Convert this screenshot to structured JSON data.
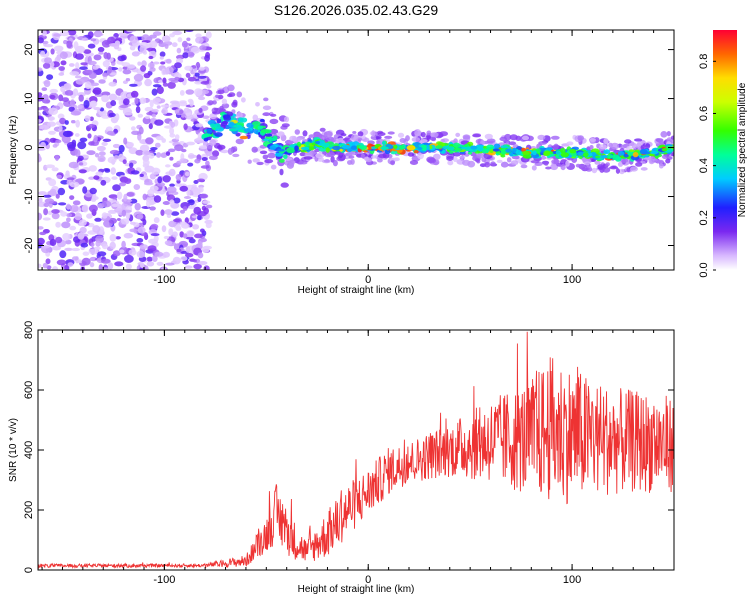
{
  "title": "S126.2026.035.02.43.G29",
  "chart_data": [
    {
      "type": "heatmap",
      "xlabel": "Height of straight line (km)",
      "ylabel": "Frequency (Hz)",
      "xlim": [
        -162,
        150
      ],
      "ylim": [
        -25,
        24
      ],
      "xticks": [
        -100,
        0,
        100
      ],
      "yticks": [
        -20,
        -10,
        0,
        10,
        20
      ],
      "track": {
        "description_points_x": [
          -80,
          -75,
          -70,
          -65,
          -60,
          -55,
          -50,
          -45,
          -40,
          -35,
          -30,
          -25,
          -20,
          -10,
          0,
          20,
          40,
          60,
          80,
          100,
          120,
          140,
          150
        ],
        "description_points_freq": [
          2,
          4,
          6,
          5,
          3,
          4,
          3,
          0,
          -1,
          0,
          0,
          1,
          0,
          0,
          0,
          0,
          0,
          -0.5,
          -1,
          -1,
          -2,
          -1,
          0
        ]
      },
      "colorbar": {
        "label": "Normalized spectral amplitude",
        "ticks": [
          "0.0",
          "0.2",
          "0.4",
          "0.6",
          "0.8"
        ],
        "range": [
          0,
          0.92
        ]
      }
    },
    {
      "type": "line",
      "xlabel": "Height of straight line (km)",
      "ylabel": "SNR (10 * v/v)",
      "xlim": [
        -162,
        150
      ],
      "ylim": [
        0,
        800
      ],
      "xticks": [
        -100,
        0,
        100
      ],
      "yticks": [
        0,
        200,
        400,
        600,
        800
      ],
      "series": [
        {
          "name": "SNR",
          "color": "#ee3333",
          "envelope_x": [
            -162,
            -80,
            -60,
            -50,
            -45,
            -40,
            -35,
            -30,
            -20,
            -10,
            0,
            10,
            20,
            40,
            60,
            80,
            90,
            100,
            110,
            120,
            150
          ],
          "envelope_mean": [
            14,
            15,
            30,
            120,
            190,
            130,
            90,
            60,
            120,
            200,
            260,
            330,
            360,
            400,
            430,
            440,
            470,
            450,
            440,
            430,
            420
          ],
          "envelope_amplitude": [
            6,
            6,
            20,
            60,
            100,
            80,
            60,
            40,
            80,
            90,
            80,
            80,
            70,
            90,
            140,
            200,
            250,
            230,
            200,
            180,
            160
          ]
        }
      ]
    }
  ]
}
